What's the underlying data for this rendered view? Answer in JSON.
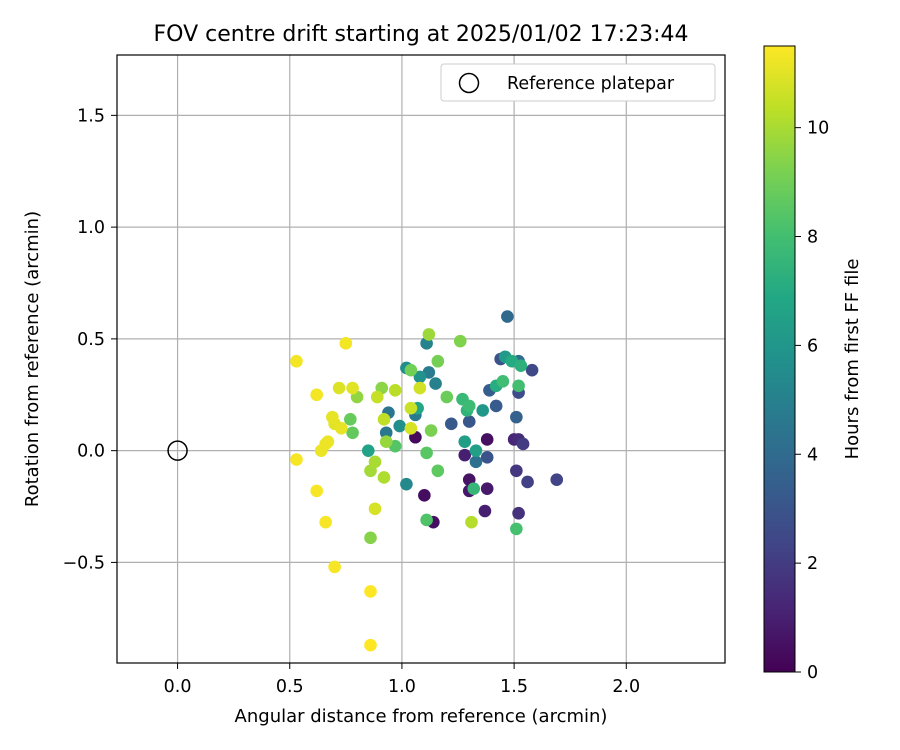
{
  "chart_data": {
    "type": "scatter",
    "title": "FOV centre drift starting at 2025/01/02 17:23:44",
    "xlabel": "Angular distance from reference (arcmin)",
    "ylabel": "Rotation from reference (arcmin)",
    "xlim": [
      -0.27,
      2.44
    ],
    "ylim": [
      -0.95,
      1.77
    ],
    "xticks": [
      0.0,
      0.5,
      1.0,
      1.5,
      2.0
    ],
    "xtick_labels": [
      "0.0",
      "0.5",
      "1.0",
      "1.5",
      "2.0"
    ],
    "yticks": [
      -0.5,
      0.0,
      0.5,
      1.0,
      1.5
    ],
    "ytick_labels": [
      "−0.5",
      "0.0",
      "0.5",
      "1.0",
      "1.5"
    ],
    "grid": true,
    "legend": {
      "position": "top-right",
      "label": "Reference platepar"
    },
    "reference_point": {
      "x": 0.0,
      "y": 0.0
    },
    "colorbar": {
      "label": "Hours from first FF file",
      "colormap": "viridis",
      "range": [
        0,
        11.5
      ],
      "ticks": [
        0,
        2,
        4,
        6,
        8,
        10
      ],
      "tick_labels": [
        "0",
        "2",
        "4",
        "6",
        "8",
        "10"
      ]
    },
    "points": [
      {
        "x": 1.06,
        "y": 0.06,
        "h": 0.3
      },
      {
        "x": 1.1,
        "y": -0.2,
        "h": 0.4
      },
      {
        "x": 1.14,
        "y": -0.32,
        "h": 0.5
      },
      {
        "x": 1.38,
        "y": 0.05,
        "h": 0.5
      },
      {
        "x": 1.3,
        "y": -0.13,
        "h": 0.6
      },
      {
        "x": 1.3,
        "y": -0.18,
        "h": 0.7
      },
      {
        "x": 1.38,
        "y": -0.17,
        "h": 0.8
      },
      {
        "x": 1.37,
        "y": -0.27,
        "h": 1.0
      },
      {
        "x": 1.28,
        "y": -0.02,
        "h": 1.0
      },
      {
        "x": 1.5,
        "y": 0.05,
        "h": 1.2
      },
      {
        "x": 1.52,
        "y": 0.05,
        "h": 1.4
      },
      {
        "x": 1.52,
        "y": -0.28,
        "h": 1.6
      },
      {
        "x": 1.51,
        "y": -0.09,
        "h": 1.8
      },
      {
        "x": 1.54,
        "y": 0.03,
        "h": 2.0
      },
      {
        "x": 1.56,
        "y": -0.14,
        "h": 2.2
      },
      {
        "x": 1.69,
        "y": -0.13,
        "h": 2.3
      },
      {
        "x": 1.58,
        "y": 0.36,
        "h": 2.5
      },
      {
        "x": 1.52,
        "y": 0.26,
        "h": 2.7
      },
      {
        "x": 1.44,
        "y": 0.41,
        "h": 2.9
      },
      {
        "x": 1.38,
        "y": -0.03,
        "h": 3.0
      },
      {
        "x": 1.3,
        "y": 0.13,
        "h": 3.1
      },
      {
        "x": 1.22,
        "y": 0.12,
        "h": 3.2
      },
      {
        "x": 1.42,
        "y": 0.2,
        "h": 3.3
      },
      {
        "x": 1.39,
        "y": 0.27,
        "h": 3.4
      },
      {
        "x": 1.51,
        "y": 0.15,
        "h": 3.6
      },
      {
        "x": 1.47,
        "y": 0.6,
        "h": 3.9
      },
      {
        "x": 1.52,
        "y": 0.4,
        "h": 4.1
      },
      {
        "x": 1.33,
        "y": -0.05,
        "h": 4.3
      },
      {
        "x": 0.94,
        "y": 0.17,
        "h": 4.5
      },
      {
        "x": 0.93,
        "y": 0.08,
        "h": 4.6
      },
      {
        "x": 1.06,
        "y": 0.16,
        "h": 4.7
      },
      {
        "x": 1.12,
        "y": 0.35,
        "h": 4.8
      },
      {
        "x": 1.15,
        "y": 0.3,
        "h": 5.0
      },
      {
        "x": 1.11,
        "y": 0.48,
        "h": 5.1
      },
      {
        "x": 1.02,
        "y": -0.15,
        "h": 5.4
      },
      {
        "x": 1.02,
        "y": 0.37,
        "h": 5.6
      },
      {
        "x": 0.99,
        "y": 0.11,
        "h": 5.7
      },
      {
        "x": 1.08,
        "y": 0.33,
        "h": 5.8
      },
      {
        "x": 1.36,
        "y": 0.18,
        "h": 6.0
      },
      {
        "x": 1.46,
        "y": 0.42,
        "h": 6.2
      },
      {
        "x": 1.28,
        "y": 0.04,
        "h": 6.4
      },
      {
        "x": 1.33,
        "y": 0.0,
        "h": 6.5
      },
      {
        "x": 0.85,
        "y": 0.0,
        "h": 6.6
      },
      {
        "x": 1.07,
        "y": 0.19,
        "h": 6.8
      },
      {
        "x": 1.49,
        "y": 0.4,
        "h": 7.0
      },
      {
        "x": 1.42,
        "y": 0.29,
        "h": 7.1
      },
      {
        "x": 1.53,
        "y": 0.38,
        "h": 7.3
      },
      {
        "x": 1.29,
        "y": 0.18,
        "h": 7.4
      },
      {
        "x": 1.32,
        "y": -0.17,
        "h": 7.6
      },
      {
        "x": 1.27,
        "y": 0.23,
        "h": 7.7
      },
      {
        "x": 1.3,
        "y": 0.2,
        "h": 7.8
      },
      {
        "x": 1.45,
        "y": 0.31,
        "h": 7.9
      },
      {
        "x": 1.52,
        "y": 0.29,
        "h": 8.0
      },
      {
        "x": 1.51,
        "y": -0.35,
        "h": 8.1
      },
      {
        "x": 1.11,
        "y": -0.31,
        "h": 8.3
      },
      {
        "x": 0.97,
        "y": 0.02,
        "h": 8.4
      },
      {
        "x": 1.11,
        "y": -0.01,
        "h": 8.5
      },
      {
        "x": 1.16,
        "y": -0.09,
        "h": 8.6
      },
      {
        "x": 0.78,
        "y": 0.08,
        "h": 8.7
      },
      {
        "x": 0.77,
        "y": 0.14,
        "h": 8.8
      },
      {
        "x": 1.2,
        "y": 0.24,
        "h": 8.9
      },
      {
        "x": 1.04,
        "y": 0.36,
        "h": 9.0
      },
      {
        "x": 1.16,
        "y": 0.4,
        "h": 9.1
      },
      {
        "x": 1.13,
        "y": 0.09,
        "h": 9.2
      },
      {
        "x": 1.26,
        "y": 0.49,
        "h": 9.3
      },
      {
        "x": 0.86,
        "y": -0.39,
        "h": 9.4
      },
      {
        "x": 0.91,
        "y": 0.28,
        "h": 9.5
      },
      {
        "x": 0.8,
        "y": 0.24,
        "h": 9.6
      },
      {
        "x": 0.93,
        "y": 0.04,
        "h": 9.7
      },
      {
        "x": 1.12,
        "y": 0.52,
        "h": 9.8
      },
      {
        "x": 0.86,
        "y": -0.09,
        "h": 9.9
      },
      {
        "x": 0.88,
        "y": -0.05,
        "h": 10.0
      },
      {
        "x": 0.92,
        "y": -0.12,
        "h": 10.1
      },
      {
        "x": 1.31,
        "y": -0.32,
        "h": 10.2
      },
      {
        "x": 0.97,
        "y": 0.27,
        "h": 10.3
      },
      {
        "x": 0.92,
        "y": 0.14,
        "h": 10.4
      },
      {
        "x": 0.89,
        "y": 0.24,
        "h": 10.5
      },
      {
        "x": 1.04,
        "y": 0.19,
        "h": 10.6
      },
      {
        "x": 1.08,
        "y": 0.28,
        "h": 10.7
      },
      {
        "x": 1.04,
        "y": 0.1,
        "h": 10.8
      },
      {
        "x": 0.88,
        "y": -0.26,
        "h": 10.8
      },
      {
        "x": 0.72,
        "y": 0.28,
        "h": 10.9
      },
      {
        "x": 0.78,
        "y": 0.28,
        "h": 11.0
      },
      {
        "x": 0.7,
        "y": 0.12,
        "h": 11.0
      },
      {
        "x": 0.69,
        "y": 0.15,
        "h": 11.1
      },
      {
        "x": 0.73,
        "y": 0.1,
        "h": 11.1
      },
      {
        "x": 0.66,
        "y": 0.03,
        "h": 11.2
      },
      {
        "x": 0.64,
        "y": 0.0,
        "h": 11.2
      },
      {
        "x": 0.67,
        "y": 0.04,
        "h": 11.2
      },
      {
        "x": 0.62,
        "y": 0.25,
        "h": 11.3
      },
      {
        "x": 0.53,
        "y": 0.4,
        "h": 11.3
      },
      {
        "x": 0.75,
        "y": 0.48,
        "h": 11.3
      },
      {
        "x": 0.53,
        "y": -0.04,
        "h": 11.4
      },
      {
        "x": 0.62,
        "y": -0.18,
        "h": 11.4
      },
      {
        "x": 0.66,
        "y": -0.32,
        "h": 11.4
      },
      {
        "x": 0.7,
        "y": -0.52,
        "h": 11.4
      },
      {
        "x": 0.86,
        "y": -0.63,
        "h": 11.5
      },
      {
        "x": 0.86,
        "y": -0.87,
        "h": 11.5
      }
    ]
  }
}
